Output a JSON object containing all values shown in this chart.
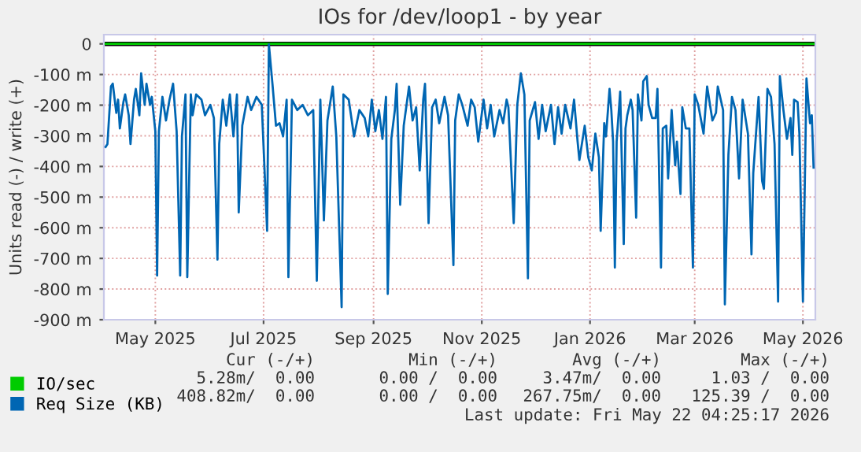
{
  "chart_data": {
    "type": "line",
    "title": "IOs for /dev/loop1 - by year",
    "ylabel": "Units read (-) / write (+)",
    "xlim": [
      "2025-04-17",
      "2026-05-23"
    ],
    "xticks": [
      {
        "value": "2025-05-16",
        "label": "May 2025"
      },
      {
        "value": "2025-07-16",
        "label": "Jul 2025"
      },
      {
        "value": "2025-09-16",
        "label": "Sep 2025"
      },
      {
        "value": "2025-11-16",
        "label": "Nov 2025"
      },
      {
        "value": "2026-01-16",
        "label": "Jan 2026"
      },
      {
        "value": "2026-03-16",
        "label": "Mar 2026"
      },
      {
        "value": "2026-05-16",
        "label": "May 2026"
      }
    ],
    "ylim": [
      -900,
      30
    ],
    "yticks": [
      {
        "value": 0,
        "label": "0"
      },
      {
        "value": -100,
        "label": "-100 m"
      },
      {
        "value": -200,
        "label": "-200 m"
      },
      {
        "value": -300,
        "label": "-300 m"
      },
      {
        "value": -400,
        "label": "-400 m"
      },
      {
        "value": -500,
        "label": "-500 m"
      },
      {
        "value": -600,
        "label": "-600 m"
      },
      {
        "value": -700,
        "label": "-700 m"
      },
      {
        "value": -800,
        "label": "-800 m"
      },
      {
        "value": -900,
        "label": "-900 m"
      }
    ],
    "grid": true,
    "legend": "bottom",
    "line_style": "solid",
    "marker": "none",
    "ref_lines": [
      {
        "axis": "y",
        "value": 0,
        "label": null,
        "color": "#000000"
      }
    ],
    "series": [
      {
        "name": "IO/sec",
        "color": "#00cc00",
        "x": [
          "2025-04-18",
          "2026-05-22"
        ],
        "values": [
          0,
          0
        ]
      },
      {
        "name": "Req Size (KB)",
        "color": "#0066b3",
        "x": [
          "2025-04-18",
          "2025-04-19",
          "2025-04-21",
          "2025-04-22",
          "2025-04-24",
          "2025-04-25",
          "2025-04-26",
          "2025-04-28",
          "2025-04-29",
          "2025-05-01",
          "2025-05-02",
          "2025-05-04",
          "2025-05-05",
          "2025-05-07",
          "2025-05-08",
          "2025-05-10",
          "2025-05-11",
          "2025-05-13",
          "2025-05-14",
          "2025-05-16",
          "2025-05-17",
          "2025-05-18",
          "2025-05-20",
          "2025-05-22",
          "2025-05-24",
          "2025-05-26",
          "2025-05-28",
          "2025-05-30",
          "2025-05-31",
          "2025-06-02",
          "2025-06-03",
          "2025-06-05",
          "2025-06-06",
          "2025-06-08",
          "2025-06-11",
          "2025-06-13",
          "2025-06-16",
          "2025-06-18",
          "2025-06-20",
          "2025-06-21",
          "2025-06-23",
          "2025-06-25",
          "2025-06-27",
          "2025-06-29",
          "2025-07-01",
          "2025-07-02",
          "2025-07-04",
          "2025-07-07",
          "2025-07-09",
          "2025-07-12",
          "2025-07-15",
          "2025-07-18",
          "2025-07-19",
          "2025-07-21",
          "2025-07-23",
          "2025-07-25",
          "2025-07-27",
          "2025-07-29",
          "2025-07-30",
          "2025-08-01",
          "2025-08-04",
          "2025-08-07",
          "2025-08-10",
          "2025-08-13",
          "2025-08-15",
          "2025-08-17",
          "2025-08-19",
          "2025-08-21",
          "2025-08-24",
          "2025-08-26",
          "2025-08-29",
          "2025-08-30",
          "2025-09-02",
          "2025-09-05",
          "2025-09-08",
          "2025-09-11",
          "2025-09-13",
          "2025-09-15",
          "2025-09-17",
          "2025-09-19",
          "2025-09-21",
          "2025-09-23",
          "2025-09-24",
          "2025-09-26",
          "2025-09-28",
          "2025-09-29",
          "2025-10-01",
          "2025-10-03",
          "2025-10-06",
          "2025-10-08",
          "2025-10-10",
          "2025-10-12",
          "2025-10-14",
          "2025-10-15",
          "2025-10-17",
          "2025-10-19",
          "2025-10-21",
          "2025-10-23",
          "2025-10-26",
          "2025-10-28",
          "2025-10-31",
          "2025-11-01",
          "2025-11-03",
          "2025-11-05",
          "2025-11-08",
          "2025-11-10",
          "2025-11-12",
          "2025-11-14",
          "2025-11-17",
          "2025-11-19",
          "2025-11-21",
          "2025-11-23",
          "2025-11-26",
          "2025-11-28",
          "2025-11-30",
          "2025-12-01",
          "2025-12-04",
          "2025-12-06",
          "2025-12-08",
          "2025-12-10",
          "2025-12-12",
          "2025-12-13",
          "2025-12-16",
          "2025-12-18",
          "2025-12-20",
          "2025-12-22",
          "2025-12-25",
          "2025-12-27",
          "2025-12-29",
          "2025-12-31",
          "2026-01-02",
          "2026-01-05",
          "2026-01-07",
          "2026-01-09",
          "2026-01-10",
          "2026-01-13",
          "2026-01-15",
          "2026-01-17",
          "2026-01-19",
          "2026-01-21",
          "2026-01-22",
          "2026-01-24",
          "2026-01-25",
          "2026-01-27",
          "2026-01-28",
          "2026-01-29",
          "2026-01-30",
          "2026-01-31",
          "2026-02-02",
          "2026-02-04",
          "2026-02-05",
          "2026-02-06",
          "2026-02-08",
          "2026-02-09",
          "2026-02-11",
          "2026-02-12",
          "2026-02-14",
          "2026-02-15",
          "2026-02-17",
          "2026-02-18",
          "2026-02-20",
          "2026-02-22",
          "2026-02-23",
          "2026-02-25",
          "2026-02-26",
          "2026-02-28",
          "2026-03-01",
          "2026-03-03",
          "2026-03-05",
          "2026-03-06",
          "2026-03-08",
          "2026-03-09",
          "2026-03-11",
          "2026-03-13",
          "2026-03-15",
          "2026-03-16",
          "2026-03-18",
          "2026-03-21",
          "2026-03-23",
          "2026-03-26",
          "2026-03-28",
          "2026-03-29",
          "2026-04-01",
          "2026-04-02",
          "2026-04-04",
          "2026-04-06",
          "2026-04-08",
          "2026-04-10",
          "2026-04-12",
          "2026-04-15",
          "2026-04-17",
          "2026-04-18",
          "2026-04-21",
          "2026-04-23",
          "2026-04-24",
          "2026-04-26",
          "2026-04-28",
          "2026-04-30",
          "2026-05-02",
          "2026-05-03",
          "2026-05-05",
          "2026-05-07",
          "2026-05-09",
          "2026-05-10",
          "2026-05-11",
          "2026-05-13",
          "2026-05-14",
          "2026-05-16",
          "2026-05-18",
          "2026-05-20",
          "2026-05-21",
          "2026-05-22"
        ],
        "values": [
          -336,
          -327,
          -139,
          -130,
          -225,
          -182,
          -276,
          -190,
          -165,
          -233,
          -327,
          -182,
          -147,
          -233,
          -96,
          -199,
          -130,
          -199,
          -173,
          -285,
          -756,
          -285,
          -173,
          -250,
          -182,
          -130,
          -285,
          -756,
          -302,
          -165,
          -761,
          -165,
          -233,
          -165,
          -182,
          -233,
          -199,
          -242,
          -704,
          -327,
          -182,
          -267,
          -165,
          -302,
          -165,
          -550,
          -267,
          -173,
          -216,
          -173,
          -199,
          -610,
          -2,
          -130,
          -267,
          -259,
          -302,
          -182,
          -761,
          -182,
          -216,
          -199,
          -233,
          -216,
          -773,
          -182,
          -576,
          -250,
          -139,
          -302,
          -859,
          -165,
          -182,
          -302,
          -216,
          -242,
          -302,
          -182,
          -285,
          -216,
          -310,
          -173,
          -816,
          -310,
          -216,
          -130,
          -525,
          -267,
          -139,
          -250,
          -207,
          -413,
          -182,
          -130,
          -585,
          -207,
          -182,
          -259,
          -173,
          -233,
          -722,
          -250,
          -165,
          -199,
          -267,
          -182,
          -207,
          -319,
          -182,
          -276,
          -199,
          -302,
          -216,
          -259,
          -182,
          -207,
          -585,
          -199,
          -96,
          -165,
          -765,
          -250,
          -190,
          -310,
          -199,
          -285,
          -199,
          -327,
          -207,
          -293,
          -199,
          -276,
          -182,
          -319,
          -379,
          -267,
          -370,
          -413,
          -293,
          -370,
          -610,
          -259,
          -302,
          -147,
          -216,
          -319,
          -730,
          -319,
          -156,
          -653,
          -276,
          -233,
          -182,
          -216,
          -567,
          -165,
          -250,
          -122,
          -105,
          -199,
          -242,
          -242,
          -147,
          -730,
          -276,
          -267,
          -439,
          -216,
          -396,
          -319,
          -490,
          -207,
          -276,
          -276,
          -730,
          -165,
          -199,
          -293,
          -139,
          -250,
          -225,
          -139,
          -216,
          -850,
          -362,
          -173,
          -216,
          -439,
          -182,
          -293,
          -687,
          -422,
          -173,
          -447,
          -473,
          -147,
          -173,
          -327,
          -841,
          -105,
          -216,
          -310,
          -242,
          -362,
          -182,
          -190,
          -293,
          -841,
          -113,
          -259,
          -233,
          -404
        ]
      }
    ],
    "annotations": [
      "Cur (-/+)",
      "Min (-/+)",
      "Avg (-/+)",
      "Max (-/+)",
      "5.28m/  0.00",
      "0.00 /  0.00",
      "3.47m/  0.00",
      "1.03 /  0.00",
      "408.82m/  0.00",
      "0.00 /  0.00",
      "267.75m/  0.00",
      "125.39 /  0.00",
      "Last update: Fri May 22 04:25:17 2026"
    ]
  }
}
